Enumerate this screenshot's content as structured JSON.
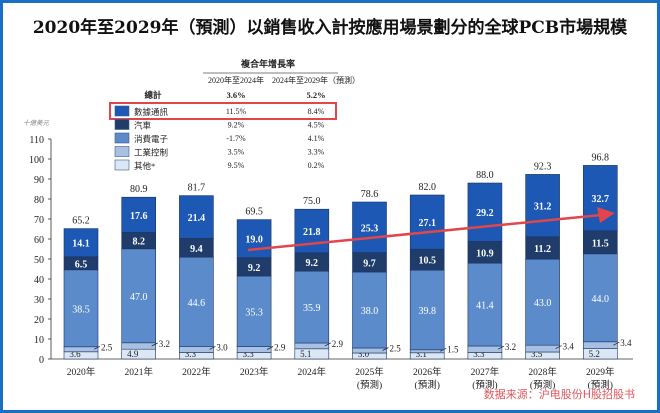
{
  "title": "2020年至2029年（預測）以銷售收入計按應用場景劃分的全球PCB市場規模",
  "source": "数据来源：沪电股份H股招股书",
  "colors": {
    "frame": "#1a6fc4",
    "highlight": "#e0464b",
    "arrow": "#e0464b"
  },
  "legend_table": {
    "header": "複合年增長率",
    "columns": [
      "2020年至2024年",
      "2024年至2029年（預測）"
    ],
    "total": {
      "label": "總計",
      "values": [
        "3.6%",
        "5.2%"
      ]
    },
    "rows": [
      {
        "label": "數據通訊",
        "values": [
          "11.5%",
          "8.4%"
        ],
        "highlighted": true
      },
      {
        "label": "汽車",
        "values": [
          "9.2%",
          "4.5%"
        ]
      },
      {
        "label": "消費電子",
        "values": [
          "-1.7%",
          "4.1%"
        ]
      },
      {
        "label": "工業控制",
        "values": [
          "3.5%",
          "3.3%"
        ]
      },
      {
        "label": "其他*",
        "values": [
          "9.5%",
          "0.2%"
        ]
      }
    ]
  },
  "chart_data": {
    "type": "bar",
    "stacked": true,
    "ylabel": "十億美元",
    "ylim": [
      0,
      110
    ],
    "yticks": [
      0,
      10,
      20,
      30,
      40,
      50,
      60,
      70,
      80,
      90,
      100,
      110
    ],
    "grid": false,
    "legend": "top-center",
    "categories": [
      "2020年",
      "2021年",
      "2022年",
      "2023年",
      "2024年",
      "2025年\n(預測)",
      "2026年\n(預測)",
      "2027年\n(預測)",
      "2028年\n(預測)",
      "2029年\n(預測)"
    ],
    "series": [
      {
        "name": "其他*",
        "color": "#dce7f6",
        "values": [
          3.6,
          4.9,
          3.3,
          3.3,
          5.1,
          3.0,
          3.1,
          3.3,
          3.5,
          5.2
        ]
      },
      {
        "name": "工業控制",
        "color": "#a8c0e4",
        "values": [
          2.5,
          3.2,
          3.0,
          2.9,
          2.9,
          2.5,
          1.5,
          3.2,
          3.4,
          3.4
        ]
      },
      {
        "name": "消費電子",
        "color": "#5b8bcb",
        "values": [
          38.5,
          47.0,
          44.6,
          35.3,
          35.9,
          38.0,
          39.8,
          41.4,
          43.0,
          44.0
        ]
      },
      {
        "name": "汽車",
        "color": "#1f3c6b",
        "values": [
          6.5,
          8.2,
          9.4,
          9.2,
          9.2,
          9.7,
          10.5,
          10.9,
          11.2,
          11.5
        ]
      },
      {
        "name": "數據通訊",
        "color": "#1c58b4",
        "values": [
          14.1,
          17.6,
          21.4,
          19.0,
          21.8,
          25.3,
          27.1,
          29.2,
          31.2,
          32.7
        ]
      }
    ],
    "totals": [
      65.2,
      80.9,
      81.7,
      69.5,
      75.0,
      78.6,
      82.0,
      88.0,
      92.3,
      96.8
    ],
    "annotations": [
      "red arrow rising from 2023 to 2029 data-communication segment"
    ]
  }
}
